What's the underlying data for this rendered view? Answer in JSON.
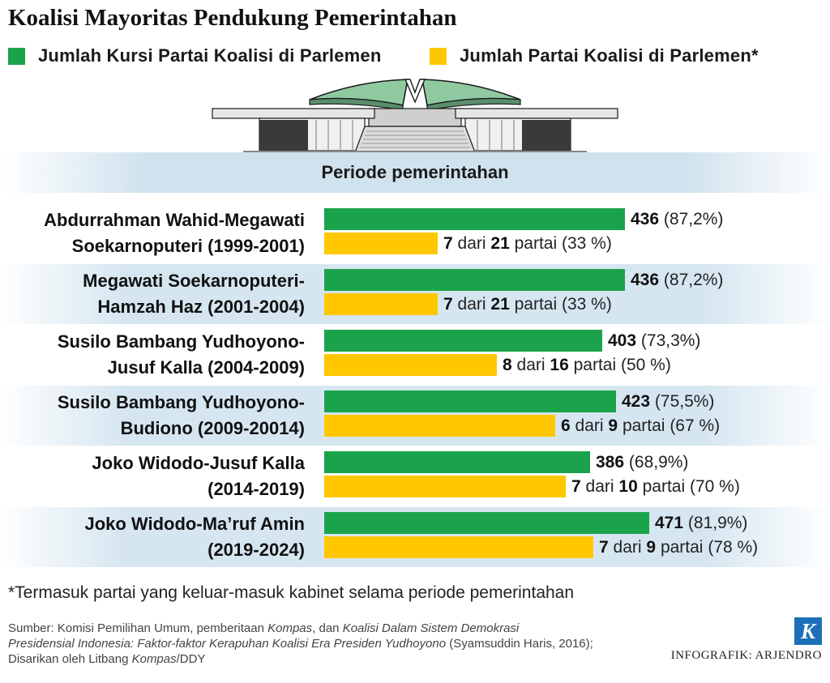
{
  "title": "Koalisi Mayoritas Pendukung Pemerintahan",
  "legend": {
    "seats": {
      "label": "Jumlah Kursi Partai Koalisi di Parlemen",
      "color": "#1aa34a"
    },
    "parties": {
      "label": "Jumlah Partai Koalisi di Parlemen*",
      "color": "#ffc700"
    }
  },
  "period_header": "Periode pemerintahan",
  "chart_data": {
    "type": "bar",
    "orientation": "horizontal",
    "categories": [
      "Abdurrahman Wahid-Megawati Soekarnoputeri (1999-2001)",
      "Megawati Soekarnoputeri-Hamzah Haz (2001-2004)",
      "Susilo Bambang Yudhoyono-Jusuf Kalla (2004-2009)",
      "Susilo Bambang Yudhoyono-Budiono (2009-20014)",
      "Joko Widodo-Jusuf Kalla (2014-2019)",
      "Joko Widodo-Ma’ruf Amin (2019-2024)"
    ],
    "series": [
      {
        "name": "Jumlah Kursi Partai Koalisi di Parlemen",
        "values": [
          436,
          436,
          403,
          423,
          386,
          471
        ],
        "percent": [
          87.2,
          87.2,
          73.3,
          75.5,
          68.9,
          81.9
        ]
      },
      {
        "name": "Jumlah Partai Koalisi di Parlemen*",
        "values": [
          7,
          7,
          8,
          6,
          7,
          7
        ],
        "total": [
          21,
          21,
          16,
          9,
          10,
          9
        ],
        "percent": [
          33,
          33,
          50,
          67,
          70,
          78
        ]
      }
    ],
    "legend_position": "top"
  },
  "rows": [
    {
      "line1": "Abdurrahman Wahid-Megawati",
      "line2": "Soekarnoputeri (1999-2001)",
      "seats": "436",
      "seats_pct": "(87,2%)",
      "coalition": "7",
      "total": "21",
      "parties_pct": "(33 %)"
    },
    {
      "line1": "Megawati Soekarnoputeri-",
      "line2": "Hamzah Haz (2001-2004)",
      "seats": "436",
      "seats_pct": "(87,2%)",
      "coalition": "7",
      "total": "21",
      "parties_pct": "(33 %)"
    },
    {
      "line1": "Susilo Bambang Yudhoyono-",
      "line2": "Jusuf Kalla (2004-2009)",
      "seats": "403",
      "seats_pct": "(73,3%)",
      "coalition": "8",
      "total": "16",
      "parties_pct": "(50 %)"
    },
    {
      "line1": "Susilo Bambang Yudhoyono-",
      "line2": "Budiono (2009-20014)",
      "seats": "423",
      "seats_pct": "(75,5%)",
      "coalition": "6",
      "total": "9",
      "parties_pct": "(67 %)"
    },
    {
      "line1": "Joko Widodo-Jusuf Kalla",
      "line2": "(2014-2019)",
      "seats": "386",
      "seats_pct": "(68,9%)",
      "coalition": "7",
      "total": "10",
      "parties_pct": "(70 %)"
    },
    {
      "line1": "Joko Widodo-Ma’ruf Amin",
      "line2": "(2019-2024)",
      "seats": "471",
      "seats_pct": "(81,9%)",
      "coalition": "7",
      "total": "9",
      "parties_pct": "(78 %)"
    }
  ],
  "words": {
    "dari": "dari",
    "partai": "partai"
  },
  "footnote": "*Termasuk partai yang keluar-masuk kabinet selama periode pemerintahan",
  "source": {
    "line1_a": "Sumber: Komisi Pemilihan Umum, pemberitaan ",
    "line1_b": "Kompas",
    "line1_c": ", dan ",
    "line1_d": "Koalisi Dalam Sistem Demokrasi",
    "line2_a": "Presidensial Indonesia: Faktor-faktor Kerapuhan Koalisi Era Presiden Yudhoyono",
    "line2_b": " (Syamsuddin Haris, 2016);",
    "line3_a": "Disarikan oleh Litbang ",
    "line3_b": "Kompas",
    "line3_c": "/DDY"
  },
  "logo_letter": "K",
  "credit": "INFOGRAFIK: ARJENDRO"
}
